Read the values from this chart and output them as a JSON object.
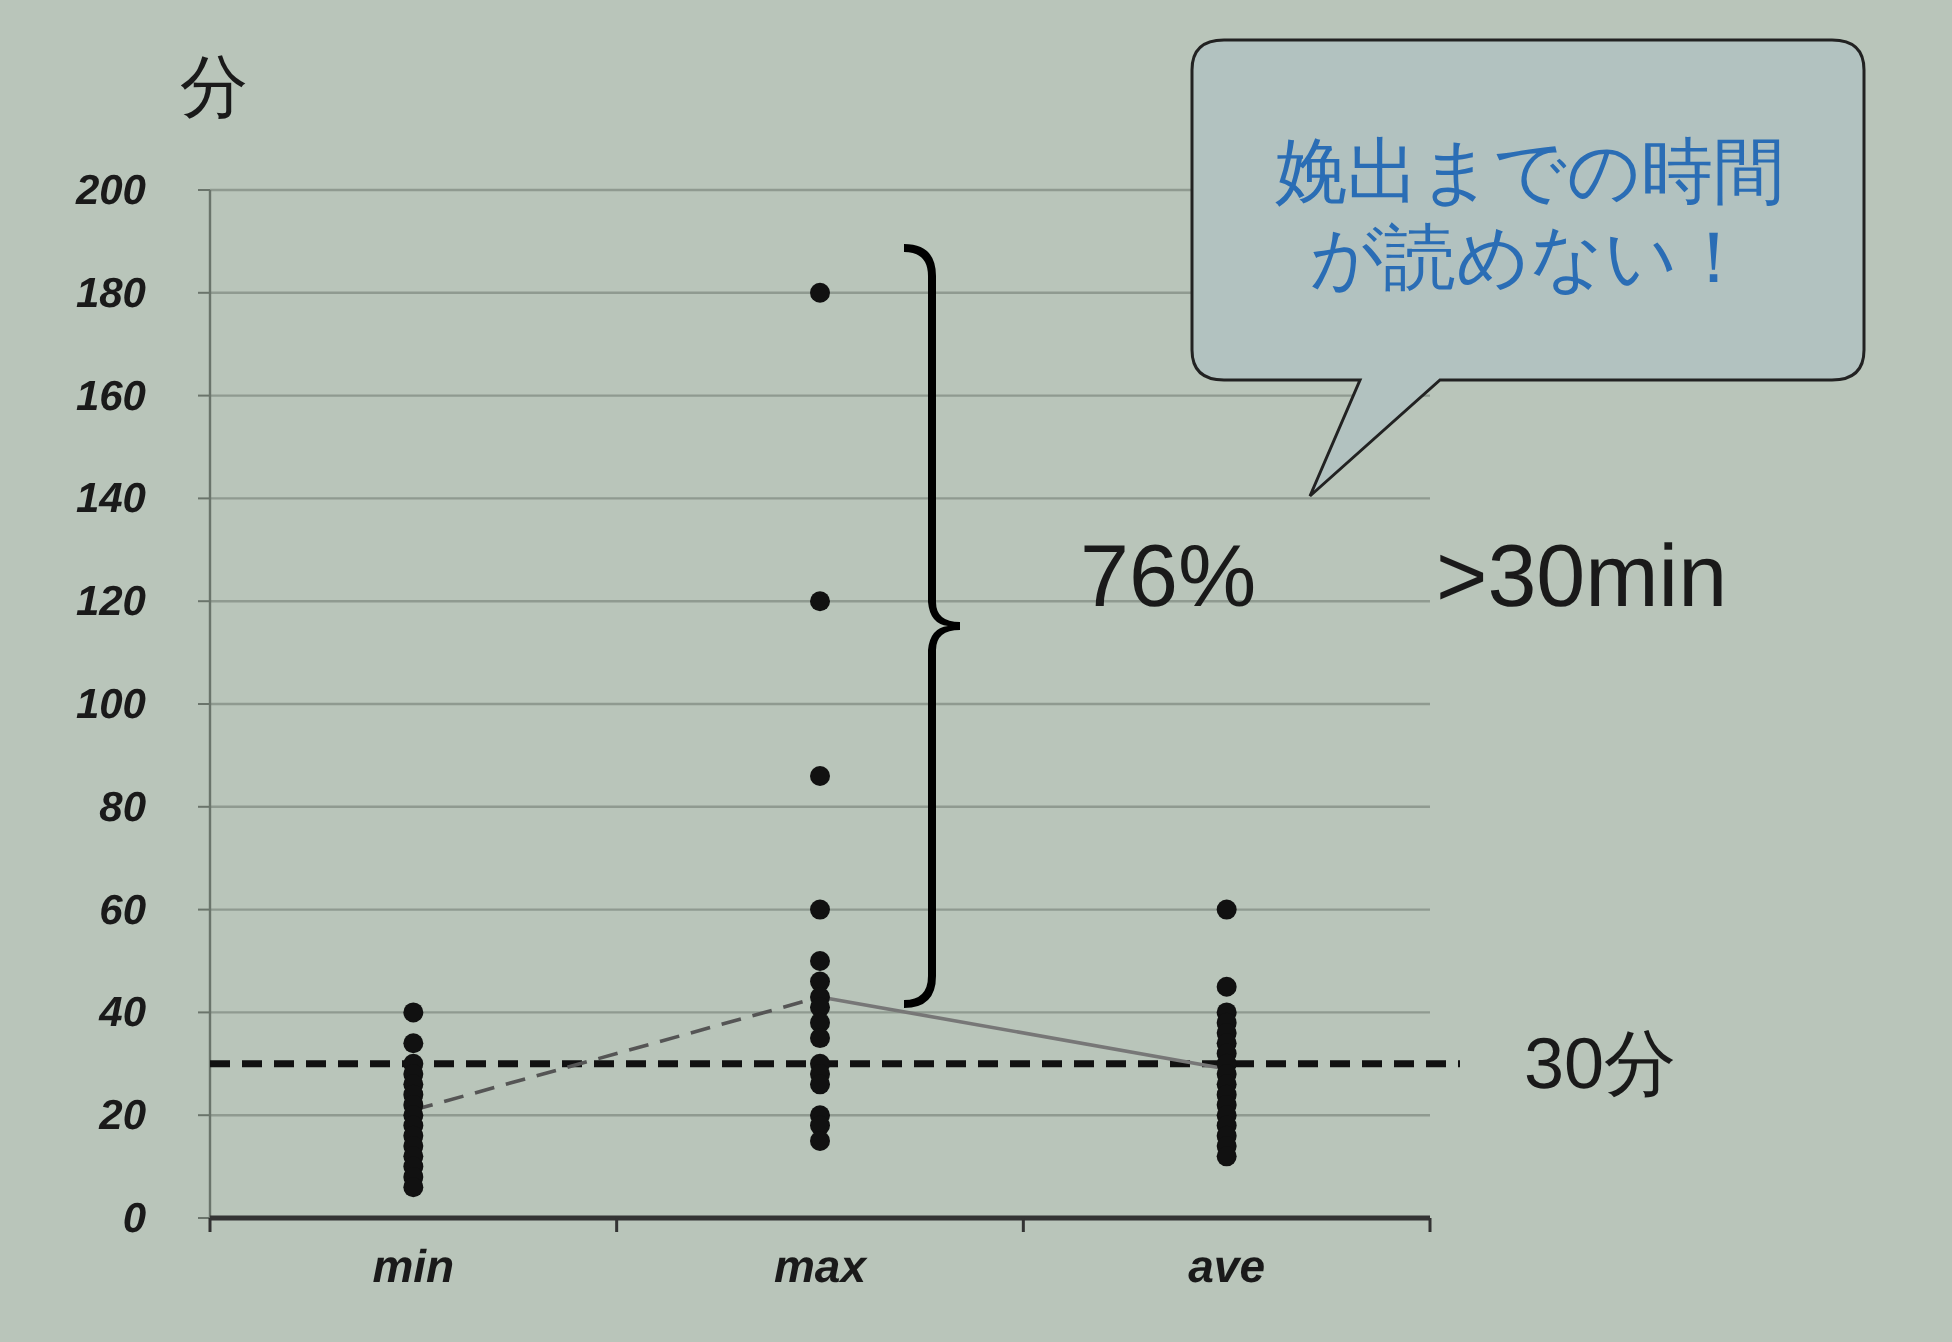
{
  "chart_data": {
    "type": "scatter",
    "ylabel": "分",
    "categories": [
      "min",
      "max",
      "ave"
    ],
    "series": [
      {
        "type": "scatter",
        "color": "#111111",
        "marker": "circle",
        "x": [
          "min",
          "min",
          "min",
          "min",
          "min",
          "min",
          "min",
          "min",
          "min",
          "min",
          "min",
          "min",
          "min",
          "min",
          "min"
        ],
        "values": [
          40,
          34,
          30,
          28,
          26,
          24,
          22,
          20,
          18,
          16,
          14,
          12,
          10,
          8,
          6
        ]
      },
      {
        "type": "scatter",
        "color": "#111111",
        "marker": "circle",
        "x": [
          "max",
          "max",
          "max",
          "max",
          "max",
          "max",
          "max",
          "max",
          "max",
          "max",
          "max",
          "max",
          "max",
          "max",
          "max",
          "max"
        ],
        "values": [
          180,
          120,
          86,
          60,
          50,
          46,
          43,
          41,
          38,
          35,
          30,
          28,
          26,
          20,
          18,
          15
        ]
      },
      {
        "type": "scatter",
        "color": "#111111",
        "marker": "circle",
        "x": [
          "ave",
          "ave",
          "ave",
          "ave",
          "ave",
          "ave",
          "ave",
          "ave",
          "ave",
          "ave",
          "ave",
          "ave",
          "ave",
          "ave",
          "ave",
          "ave",
          "ave"
        ],
        "values": [
          60,
          45,
          40,
          38,
          36,
          34,
          32,
          30,
          28,
          26,
          24,
          22,
          20,
          18,
          16,
          14,
          12
        ]
      },
      {
        "type": "line",
        "color": "#555555",
        "line_style": "dashed",
        "marker": "none",
        "values": [
          21,
          43,
          null
        ]
      },
      {
        "type": "line",
        "color": "#777777",
        "line_style": "solid",
        "marker": "none",
        "values": [
          null,
          43,
          29
        ]
      }
    ],
    "ylim": [
      0,
      200
    ],
    "yticks": [
      0,
      20,
      40,
      60,
      80,
      100,
      120,
      140,
      160,
      180,
      200
    ],
    "grid": "y",
    "ref_lines": [
      {
        "axis": "y",
        "value": 30,
        "label": "30分",
        "color": "#111111",
        "line_style": "dashed"
      }
    ],
    "annotations": [
      "76%",
      ">30min",
      "娩出までの時間が読めない！"
    ]
  }
}
